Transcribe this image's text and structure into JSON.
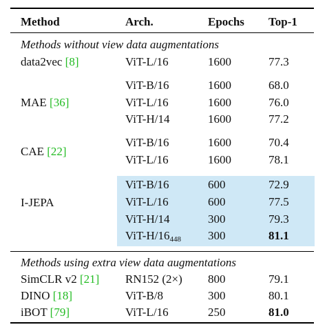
{
  "header": {
    "method": "Method",
    "arch": "Arch.",
    "epochs": "Epochs",
    "top1": "Top-1"
  },
  "section1": {
    "title": "Methods without view data augmentations"
  },
  "data2vec": {
    "name": "data2vec",
    "cite": "[8]",
    "arch": "ViT-L/16",
    "epochs": "1600",
    "top1": "77.3"
  },
  "mae": {
    "name": "MAE",
    "cite": "[36]",
    "rows": [
      {
        "arch": "ViT-B/16",
        "epochs": "1600",
        "top1": "68.0"
      },
      {
        "arch": "ViT-L/16",
        "epochs": "1600",
        "top1": "76.0"
      },
      {
        "arch": "ViT-H/14",
        "epochs": "1600",
        "top1": "77.2"
      }
    ]
  },
  "cae": {
    "name": "CAE",
    "cite": "[22]",
    "rows": [
      {
        "arch": "ViT-B/16",
        "epochs": "1600",
        "top1": "70.4"
      },
      {
        "arch": "ViT-L/16",
        "epochs": "1600",
        "top1": "78.1"
      }
    ]
  },
  "ijepa": {
    "name": "I-JEPA",
    "highlight_color": "#cfe8f6",
    "rows": [
      {
        "arch": "ViT-B/16",
        "epochs": "600",
        "top1": "72.9"
      },
      {
        "arch": "ViT-L/16",
        "epochs": "600",
        "top1": "77.5"
      },
      {
        "arch": "ViT-H/14",
        "epochs": "300",
        "top1": "79.3"
      },
      {
        "arch": "ViT-H/16",
        "arch_sub": "448",
        "epochs": "300",
        "top1": "81.1"
      }
    ]
  },
  "section2": {
    "title": "Methods using extra view data augmentations"
  },
  "simclr": {
    "name": "SimCLR v2",
    "cite": "[21]",
    "arch": "RN152 (2×)",
    "epochs": "800",
    "top1": "79.1"
  },
  "dino": {
    "name": "DINO",
    "cite": "[18]",
    "arch": "ViT-B/8",
    "epochs": "300",
    "top1": "80.1"
  },
  "ibot": {
    "name": "iBOT",
    "cite": "[79]",
    "arch": "ViT-L/16",
    "epochs": "250",
    "top1": "81.0"
  },
  "colors": {
    "citation": "#22bb22",
    "highlight": "#cfe8f6"
  }
}
